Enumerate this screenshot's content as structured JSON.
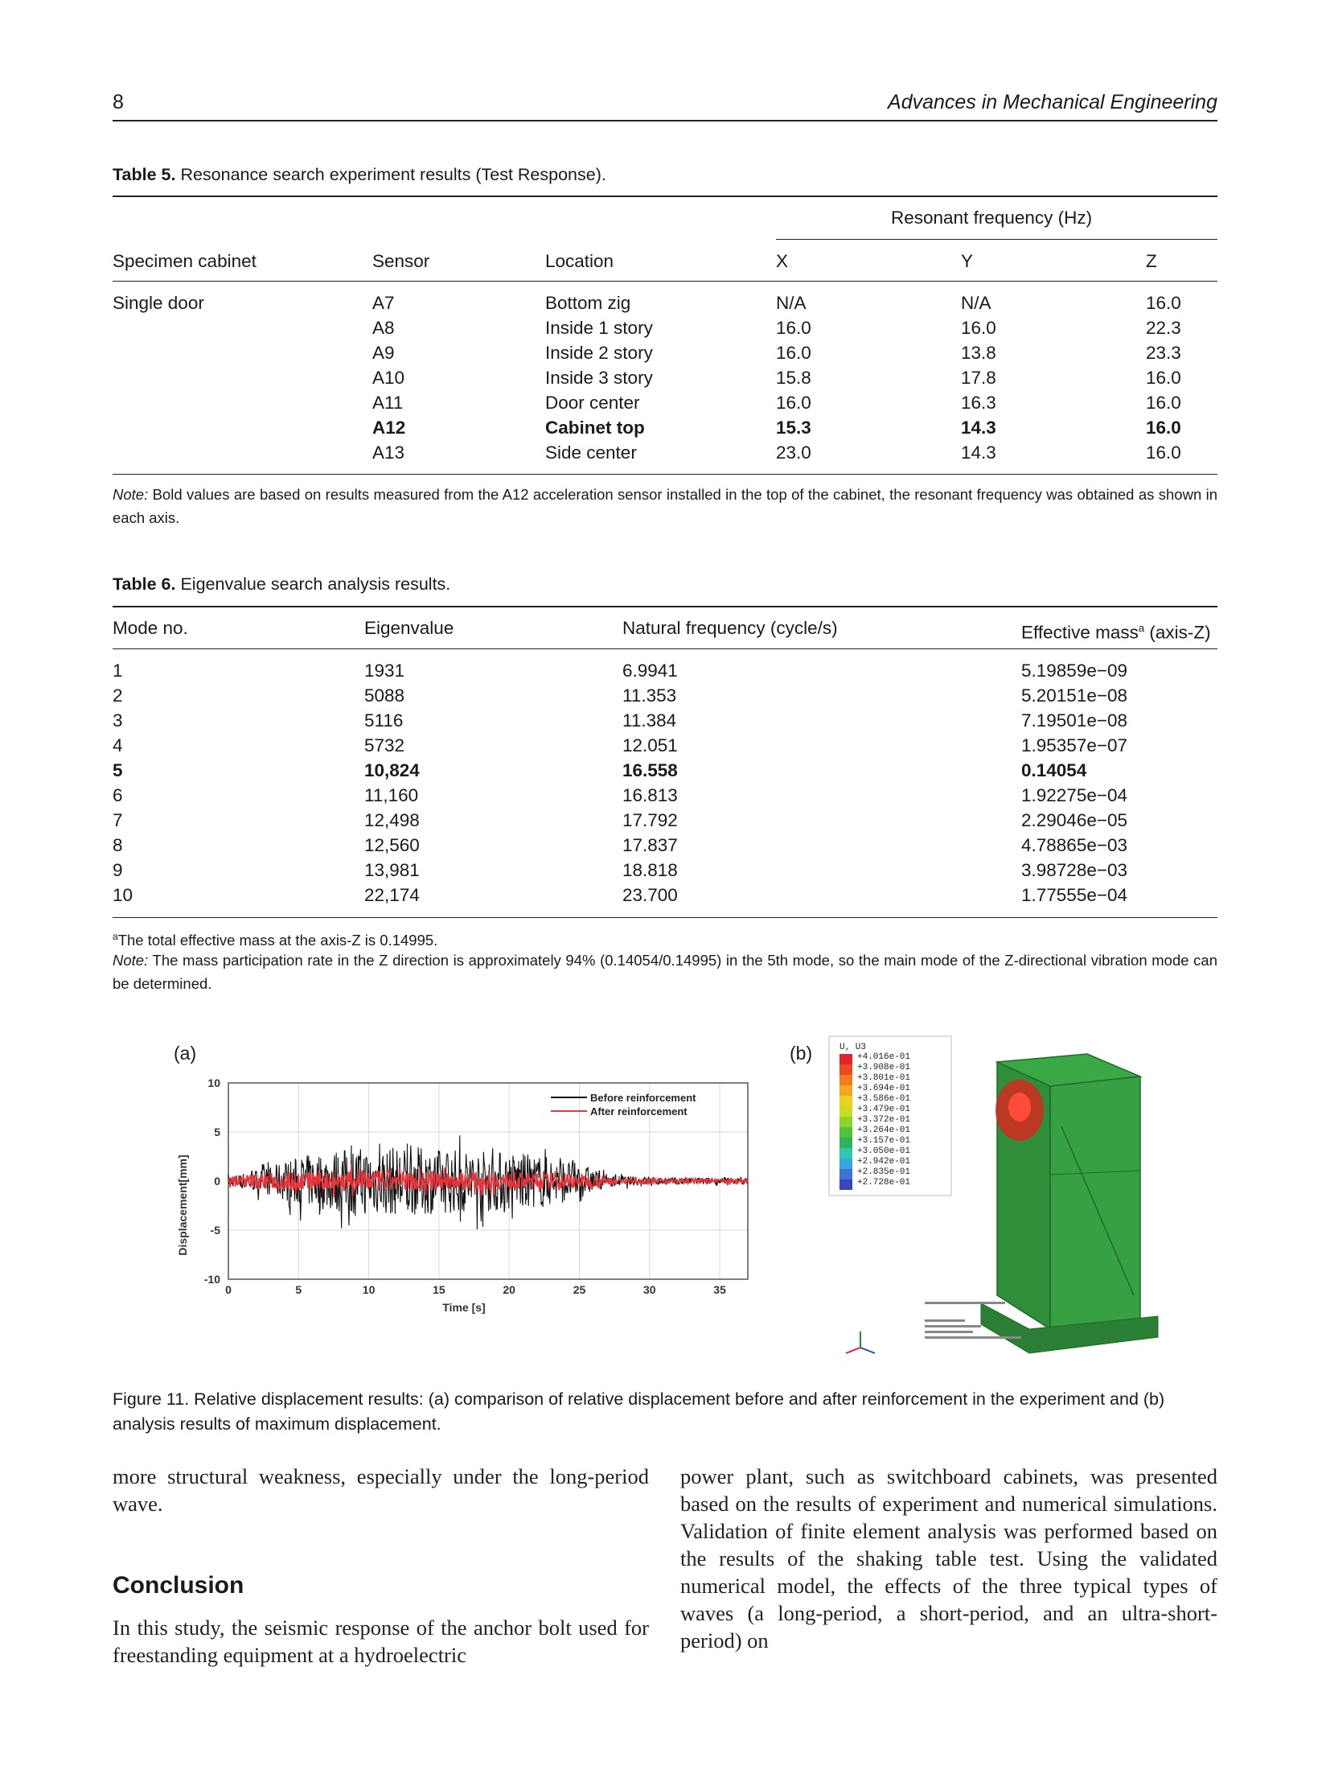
{
  "header": {
    "page_number": "8",
    "journal": "Advances in Mechanical Engineering"
  },
  "table5": {
    "caption_label": "Table 5.",
    "caption_text": "Resonance search experiment results (Test Response).",
    "group_header": "Resonant frequency (Hz)",
    "columns": [
      "Specimen cabinet",
      "Sensor",
      "Location",
      "X",
      "Y",
      "Z"
    ],
    "rows": [
      [
        "Single door",
        "A7",
        "Bottom zig",
        "N/A",
        "N/A",
        "16.0"
      ],
      [
        "",
        "A8",
        "Inside 1 story",
        "16.0",
        "16.0",
        "22.3"
      ],
      [
        "",
        "A9",
        "Inside 2 story",
        "16.0",
        "13.8",
        "23.3"
      ],
      [
        "",
        "A10",
        "Inside 3 story",
        "15.8",
        "17.8",
        "16.0"
      ],
      [
        "",
        "A11",
        "Door center",
        "16.0",
        "16.3",
        "16.0"
      ],
      [
        "",
        "A12",
        "Cabinet top",
        "15.3",
        "14.3",
        "16.0"
      ],
      [
        "",
        "A13",
        "Side center",
        "23.0",
        "14.3",
        "16.0"
      ]
    ],
    "bold_row_index": 5,
    "note_label": "Note:",
    "note_text": "Bold values are based on results measured from the A12 acceleration sensor installed in the top of the cabinet, the resonant frequency was obtained as shown in each axis."
  },
  "table6": {
    "caption_label": "Table 6.",
    "caption_text": "Eigenvalue search analysis results.",
    "columns": [
      "Mode no.",
      "Eigenvalue",
      "Natural frequency (cycle/s)",
      "Effective mass",
      "a",
      " (axis-Z)"
    ],
    "rows": [
      [
        "1",
        "1931",
        "6.9941",
        "5.19859e−09"
      ],
      [
        "2",
        "5088",
        "11.353",
        "5.20151e−08"
      ],
      [
        "3",
        "5116",
        "11.384",
        "7.19501e−08"
      ],
      [
        "4",
        "5732",
        "12.051",
        "1.95357e−07"
      ],
      [
        "5",
        "10,824",
        "16.558",
        "0.14054"
      ],
      [
        "6",
        "11,160",
        "16.813",
        "1.92275e−04"
      ],
      [
        "7",
        "12,498",
        "17.792",
        "2.29046e−05"
      ],
      [
        "8",
        "12,560",
        "17.837",
        "4.78865e−03"
      ],
      [
        "9",
        "13,981",
        "18.818",
        "3.98728e−03"
      ],
      [
        "10",
        "22,174",
        "23.700",
        "1.77555e−04"
      ]
    ],
    "bold_row_index": 4,
    "footnote_mark": "a",
    "footnote_text": "The total effective mass at the axis-Z is 0.14995.",
    "note_label": "Note:",
    "note_text": "The mass participation rate in the Z direction is approximately 94% (0.14054/0.14995) in the 5th mode, so the main mode of the Z-directional vibration mode can be determined."
  },
  "figure11": {
    "panel_a_label": "(a)",
    "panel_b_label": "(b)",
    "chart_data": {
      "type": "line",
      "xlabel": "Time [s]",
      "ylabel": "Displacement[mm]",
      "xlim": [
        0,
        37
      ],
      "ylim": [
        -10,
        10
      ],
      "x_ticks": [
        0,
        5,
        10,
        15,
        20,
        25,
        30,
        35
      ],
      "y_ticks": [
        -10,
        -5,
        0,
        5,
        10
      ],
      "legend_position": "top-right",
      "series": [
        {
          "name": "Before reinforcement",
          "color": "#111111",
          "envelope": [
            [
              0,
              0.5
            ],
            [
              3,
              1.5
            ],
            [
              5,
              2.5
            ],
            [
              8,
              3.3
            ],
            [
              10,
              3.5
            ],
            [
              13,
              3.5
            ],
            [
              15,
              3.3
            ],
            [
              17,
              3.3
            ],
            [
              20,
              3.0
            ],
            [
              23,
              2.5
            ],
            [
              25,
              1.8
            ],
            [
              27,
              0.6
            ],
            [
              30,
              0.4
            ],
            [
              37,
              0.3
            ]
          ]
        },
        {
          "name": "After reinforcement",
          "color": "#e8343a",
          "envelope": [
            [
              0,
              0.6
            ],
            [
              5,
              1.0
            ],
            [
              10,
              1.1
            ],
            [
              15,
              1.0
            ],
            [
              20,
              0.9
            ],
            [
              25,
              0.7
            ],
            [
              28,
              0.3
            ],
            [
              37,
              0.2
            ]
          ]
        }
      ]
    },
    "contour_title": "U, U3",
    "contour_values": [
      "+4.016e-01",
      "+3.908e-01",
      "+3.801e-01",
      "+3.694e-01",
      "+3.586e-01",
      "+3.479e-01",
      "+3.372e-01",
      "+3.264e-01",
      "+3.157e-01",
      "+3.050e-01",
      "+2.942e-01",
      "+2.835e-01",
      "+2.728e-01"
    ],
    "contour_colors": [
      "#e3232b",
      "#ee4a1f",
      "#f37b21",
      "#f5a623",
      "#e8d21f",
      "#c7de1e",
      "#8fd22a",
      "#4fc23b",
      "#2fb35b",
      "#2fc7b3",
      "#36a8e0",
      "#3c74d6",
      "#3a45c0"
    ],
    "colors": {
      "cabinet_green": "#2f9a3c",
      "hotspot_red": "#d42a20"
    },
    "caption": "Figure 11. Relative displacement results: (a) comparison of relative displacement before and after reinforcement in the experiment and (b) analysis results of maximum displacement."
  },
  "body": {
    "left_para1": "more structural weakness, especially under the long-period wave.",
    "heading": "Conclusion",
    "left_para2": "In this study, the seismic response of the anchor bolt used for freestanding equipment at a hydroelectric",
    "right_para": "power plant, such as switchboard cabinets, was presented based on the results of experiment and numerical simulations. Validation of finite element analysis was performed based on the results of the shaking table test. Using the validated numerical model, the effects of the three typical types of waves (a long-period, a short-period, and an ultra-short-period) on"
  }
}
